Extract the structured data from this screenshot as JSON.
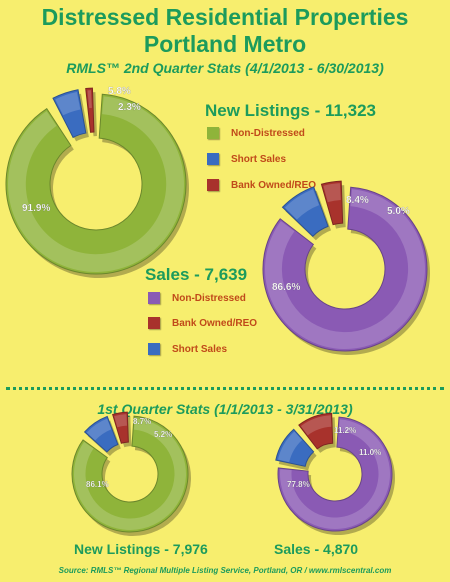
{
  "title_line1": "Distressed Residential Properties",
  "title_line2": "Portland Metro",
  "q2_stats": "RMLS™ 2nd Quarter Stats (4/1/2013 - 6/30/2013)",
  "q1_stats": "1st Quarter Stats (1/1/2013 - 3/31/2013)",
  "source": "Source: RMLS™ Regional Multiple Listing Service, Portland, OR / www.rmlscentral.com",
  "legend_new_listings": [
    {
      "label": "Non-Distressed",
      "color": "#8fb43a"
    },
    {
      "label": "Short Sales",
      "color": "#3a6cc0"
    },
    {
      "label": "Bank Owned/REO",
      "color": "#a8322c"
    }
  ],
  "legend_sales": [
    {
      "label": "Non-Distressed",
      "color": "#8a5ab4"
    },
    {
      "label": "Bank Owned/REO",
      "color": "#a8322c"
    },
    {
      "label": "Short Sales",
      "color": "#3a6cc0"
    }
  ],
  "chart_data": [
    {
      "type": "pie",
      "title": "New Listings - 11,323",
      "categories": [
        "Non-Distressed",
        "Short Sales",
        "Bank Owned/REO"
      ],
      "values": [
        91.9,
        5.8,
        2.3
      ],
      "labels": [
        "91.9%",
        "5.8%",
        "2.3%"
      ],
      "colors": [
        "#8fb43a",
        "#3a6cc0",
        "#a8322c"
      ]
    },
    {
      "type": "pie",
      "title": "Sales - 7,639",
      "categories": [
        "Non-Distressed",
        "Short Sales",
        "Bank Owned/REO"
      ],
      "values": [
        86.6,
        8.4,
        5.0
      ],
      "labels": [
        "86.6%",
        "8.4%",
        "5.0%"
      ],
      "colors": [
        "#8a5ab4",
        "#3a6cc0",
        "#a8322c"
      ]
    },
    {
      "type": "pie",
      "title": "New Listings - 7,976",
      "categories": [
        "Non-Distressed",
        "Short Sales",
        "Bank Owned/REO"
      ],
      "values": [
        86.1,
        8.7,
        5.2
      ],
      "labels": [
        "86.1%",
        "8.7%",
        "5.2%"
      ],
      "colors": [
        "#8fb43a",
        "#3a6cc0",
        "#a8322c"
      ]
    },
    {
      "type": "pie",
      "title": "Sales - 4,870",
      "categories": [
        "Non-Distressed",
        "Short Sales",
        "Bank Owned/REO"
      ],
      "values": [
        77.8,
        11.2,
        11.0
      ],
      "labels": [
        "77.8%",
        "11.2%",
        "11.0%"
      ],
      "colors": [
        "#8a5ab4",
        "#3a6cc0",
        "#a8322c"
      ]
    }
  ]
}
